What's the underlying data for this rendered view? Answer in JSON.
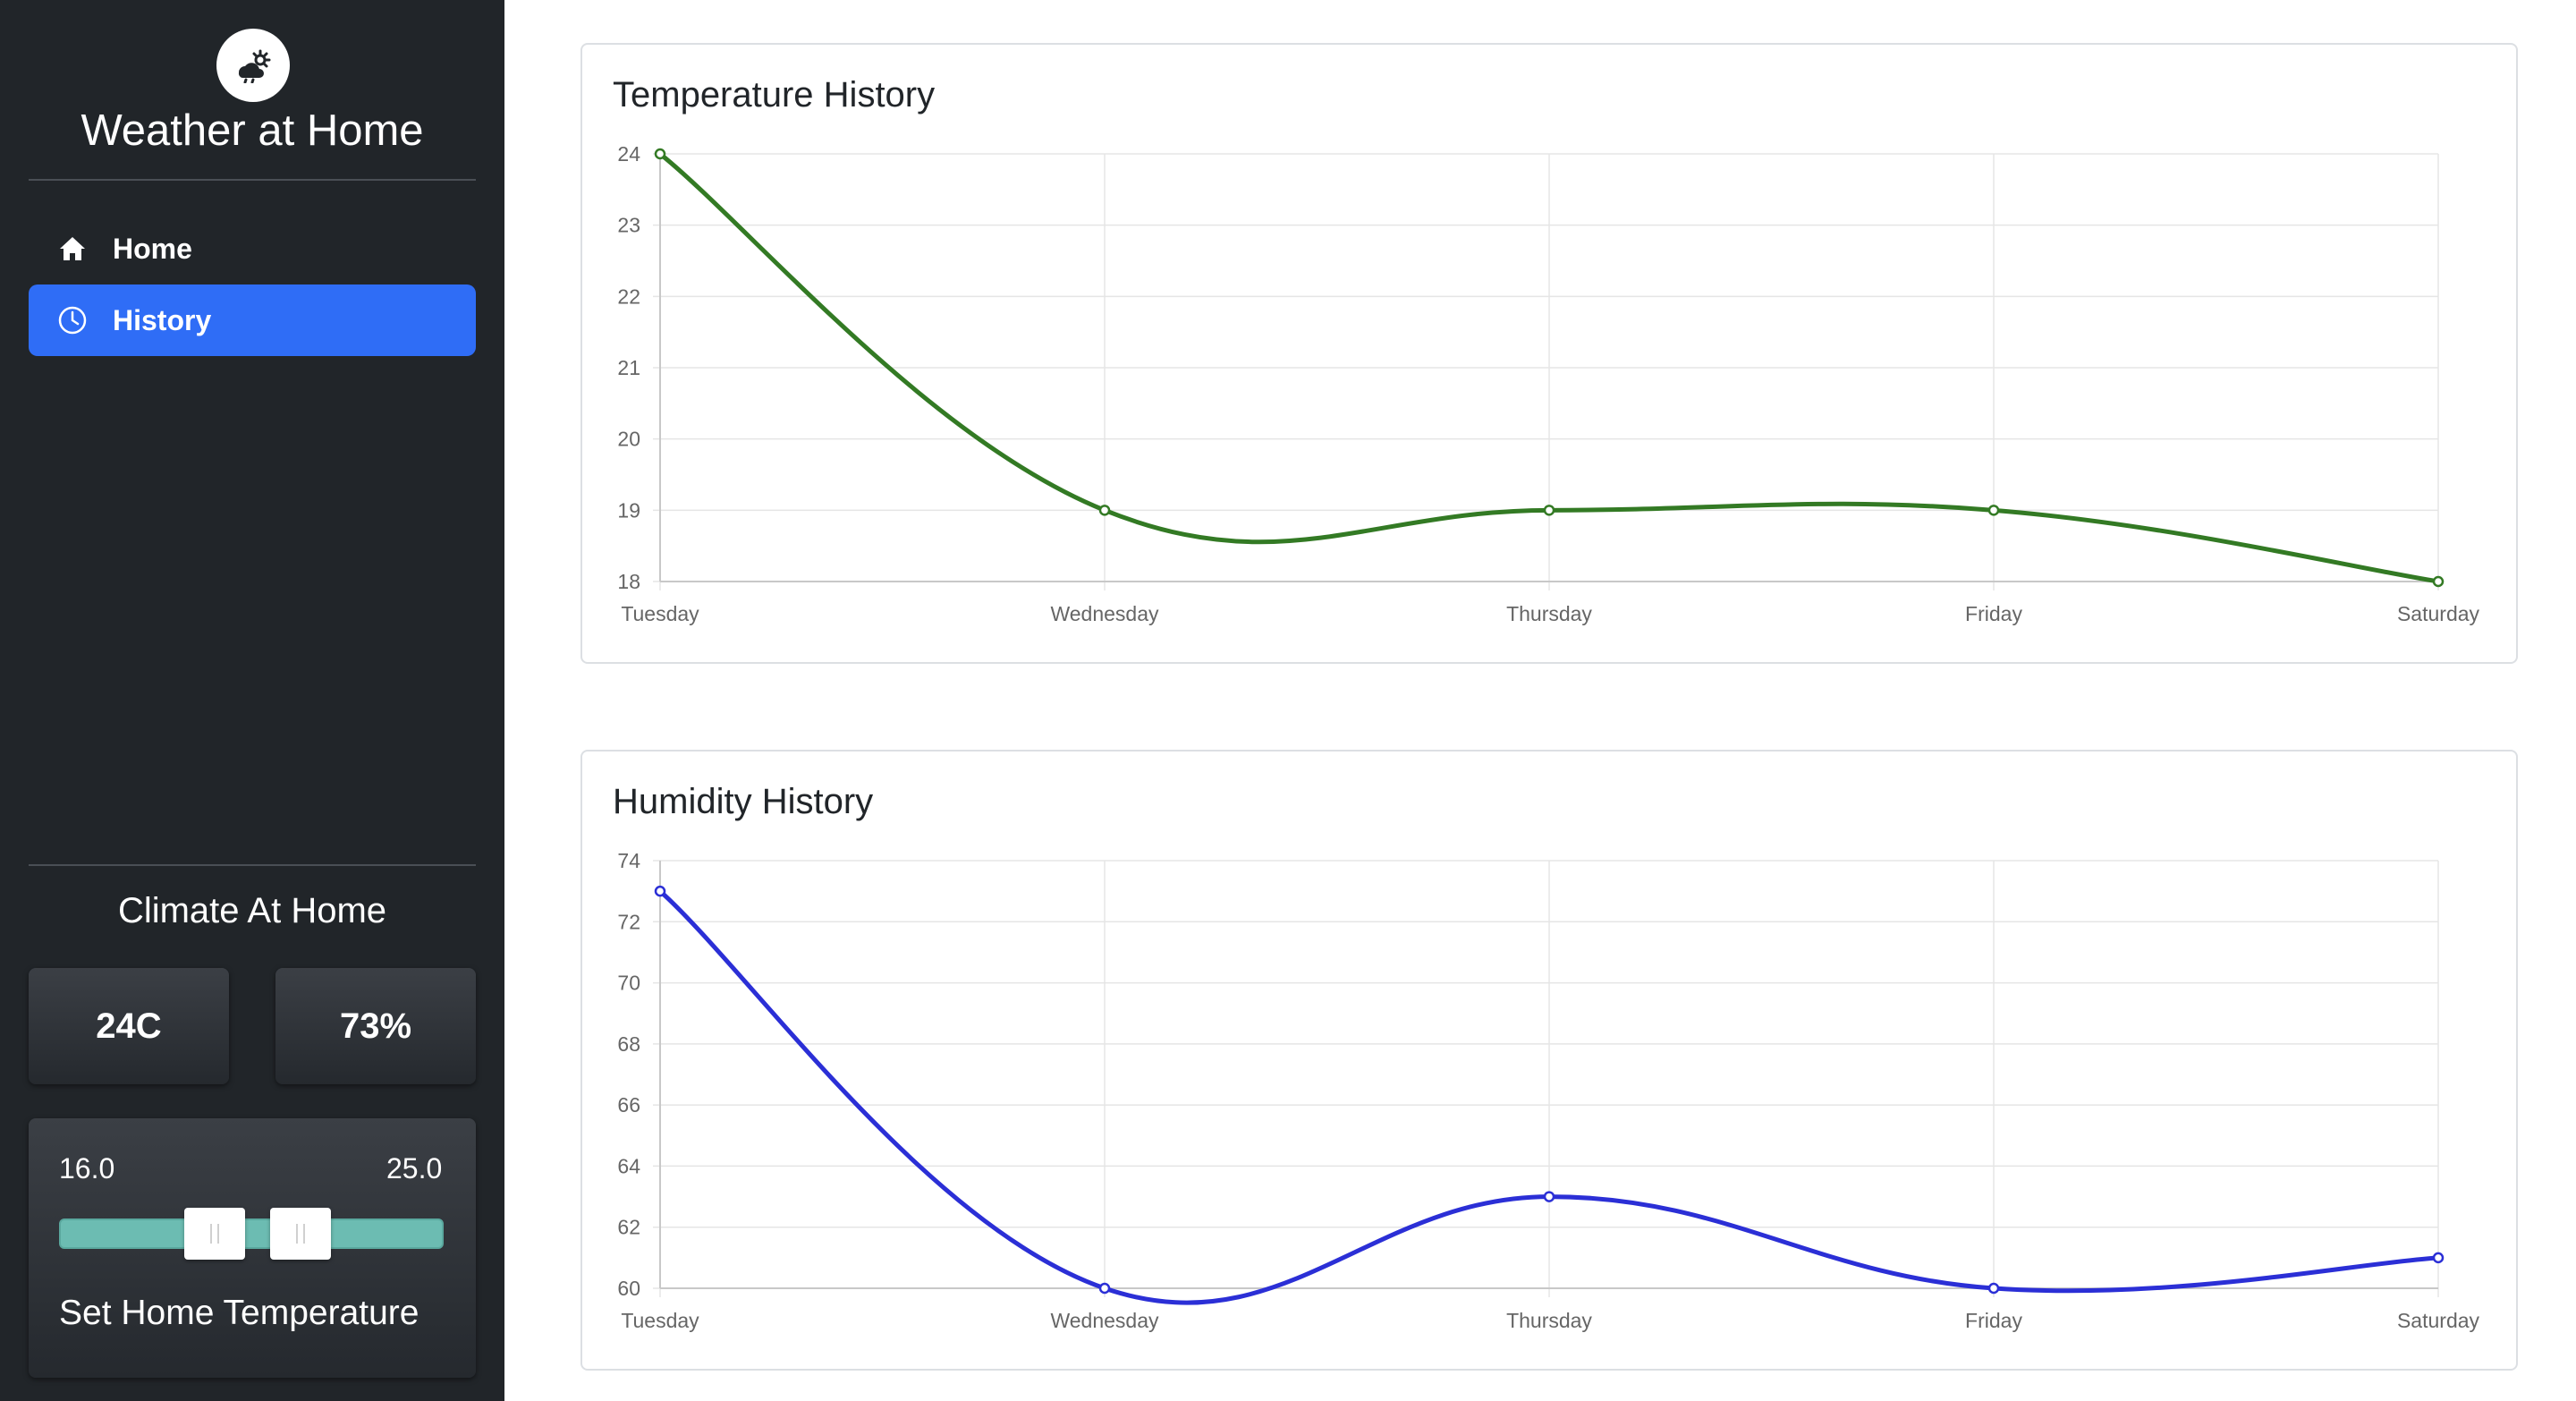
{
  "sidebar": {
    "app_title": "Weather at Home",
    "logo_icon": "weather-sun-cloud-icon",
    "nav": [
      {
        "label": "Home",
        "icon": "home-icon",
        "active": false
      },
      {
        "label": "History",
        "icon": "clock-icon",
        "active": true
      }
    ],
    "climate_title": "Climate At Home",
    "current_temperature": "24C",
    "current_humidity": "73%",
    "range_min": "16.0",
    "range_max": "25.0",
    "set_temp_label": "Set Home Temperature",
    "accent_color": "#2f6df6",
    "slider_color": "#6cbcb2"
  },
  "cards": [
    {
      "title": "Temperature History"
    },
    {
      "title": "Humidity History"
    }
  ],
  "chart_data": [
    {
      "type": "line",
      "title": "Temperature History",
      "xlabel": "",
      "ylabel": "",
      "categories": [
        "Tuesday",
        "Wednesday",
        "Thursday",
        "Friday",
        "Saturday"
      ],
      "series": [
        {
          "values": [
            24,
            19,
            19,
            19,
            18
          ],
          "color": "#337a24"
        }
      ],
      "ylim": [
        18,
        24
      ],
      "yticks": [
        18,
        19,
        20,
        21,
        22,
        23,
        24
      ],
      "grid": true,
      "legend": "none"
    },
    {
      "type": "line",
      "title": "Humidity History",
      "xlabel": "",
      "ylabel": "",
      "categories": [
        "Tuesday",
        "Wednesday",
        "Thursday",
        "Friday",
        "Saturday"
      ],
      "series": [
        {
          "values": [
            73,
            60,
            63,
            60,
            61
          ],
          "color": "#2b2fd6"
        }
      ],
      "ylim": [
        60,
        74
      ],
      "yticks": [
        60,
        62,
        64,
        66,
        68,
        70,
        72,
        74
      ],
      "grid": true,
      "legend": "none"
    }
  ]
}
